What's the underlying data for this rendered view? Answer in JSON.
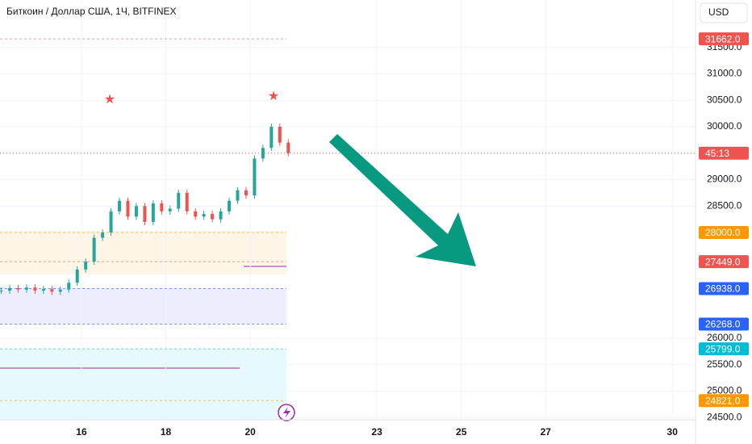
{
  "chart_data": {
    "type": "candlestick",
    "title": "Биткоин / Доллар США, 1Ч, BITFINEX",
    "currency": "USD",
    "countdown": "45:13",
    "x": [
      14.1,
      14.3,
      14.5,
      14.7,
      14.9,
      15.1,
      15.3,
      15.5,
      15.7,
      15.9,
      16.1,
      16.3,
      16.5,
      16.7,
      16.9,
      17.1,
      17.3,
      17.5,
      17.7,
      17.9,
      18.1,
      18.3,
      18.5,
      18.7,
      18.9,
      19.1,
      19.3,
      19.5,
      19.7,
      19.9,
      20.1,
      20.3,
      20.5,
      20.7,
      20.9
    ],
    "close": [
      26900,
      26950,
      26920,
      26960,
      26900,
      26930,
      26880,
      26920,
      27050,
      27300,
      27450,
      27900,
      28000,
      28400,
      28600,
      28300,
      28500,
      28200,
      28550,
      28400,
      28450,
      28750,
      28400,
      28300,
      28350,
      28250,
      28400,
      28600,
      28800,
      28700,
      29400,
      29600,
      30000,
      29700,
      29500
    ],
    "up_color": "#26a69a",
    "down_color": "#ef5350",
    "xlim": [
      14.07,
      30.55
    ],
    "ylim": [
      24458,
      32397
    ],
    "xticks": [
      16,
      18,
      20,
      23,
      25,
      27,
      30
    ],
    "yticks": [
      {
        "value": 24500,
        "label": "24500.0"
      },
      {
        "value": 25000,
        "label": "25000.0"
      },
      {
        "value": 25500,
        "label": "25500.0"
      },
      {
        "value": 26000,
        "label": "26000.0"
      },
      {
        "value": 28500,
        "label": "28500.0"
      },
      {
        "value": 29000,
        "label": "29000.0"
      },
      {
        "value": 30000,
        "label": "30000.0"
      },
      {
        "value": 30500,
        "label": "30500.0"
      },
      {
        "value": 31000,
        "label": "31000.0"
      },
      {
        "value": 31500,
        "label": "31500.0"
      }
    ],
    "grid": true,
    "price_badges": [
      {
        "value": 31662,
        "label": "31662.0",
        "color": "#f05350"
      },
      {
        "value": 28000,
        "label": "28000.0",
        "color": "#ff9800"
      },
      {
        "value": 27449,
        "label": "27449.0",
        "color": "#f05350"
      },
      {
        "value": 26938,
        "label": "26938.0",
        "color": "#2962ff"
      },
      {
        "value": 26268,
        "label": "26268.0",
        "color": "#2962ff"
      },
      {
        "value": 25799,
        "label": "25799.0",
        "color": "#00bcd4"
      },
      {
        "value": 24821,
        "label": "24821.0",
        "color": "#ff9800"
      }
    ]
  }
}
